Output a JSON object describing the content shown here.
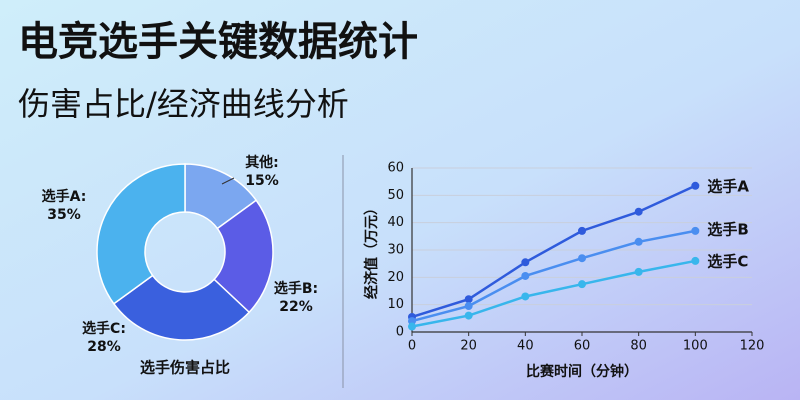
{
  "header": {
    "title": "电竞选手关键数据统计",
    "subtitle": "伤害占比/经济曲线分析"
  },
  "chart_data": [
    {
      "type": "pie",
      "title": "选手伤害占比",
      "donut": true,
      "categories": [
        "其他:",
        "选手B:",
        "选手C:",
        "选手A:"
      ],
      "values": [
        15,
        22,
        28,
        35
      ],
      "value_labels": [
        "15%",
        "22%",
        "28%",
        "35%"
      ],
      "colors": [
        "#7ba7f0",
        "#5b5ce6",
        "#3a60de",
        "#4bb2ee"
      ]
    },
    {
      "type": "line",
      "xlabel": "比赛时间（分钟）",
      "ylabel": "经济值（万元）",
      "x": [
        0,
        20,
        40,
        60,
        80,
        100
      ],
      "series": [
        {
          "name": "选手A",
          "color": "#2f5bdc",
          "values": [
            5.5,
            12,
            25.5,
            37,
            44,
            53.5
          ]
        },
        {
          "name": "选手B",
          "color": "#4a8ef0",
          "values": [
            4,
            9.5,
            20.5,
            27,
            33,
            37
          ]
        },
        {
          "name": "选手C",
          "color": "#38b6ec",
          "values": [
            2,
            6,
            13,
            17.5,
            22,
            26
          ]
        }
      ],
      "xlim": [
        0,
        120
      ],
      "xticks": [
        0,
        20,
        40,
        60,
        80,
        100,
        120
      ],
      "ylim": [
        0,
        60
      ],
      "yticks": [
        0,
        10,
        20,
        30,
        40,
        50,
        60
      ],
      "grid": true
    }
  ]
}
